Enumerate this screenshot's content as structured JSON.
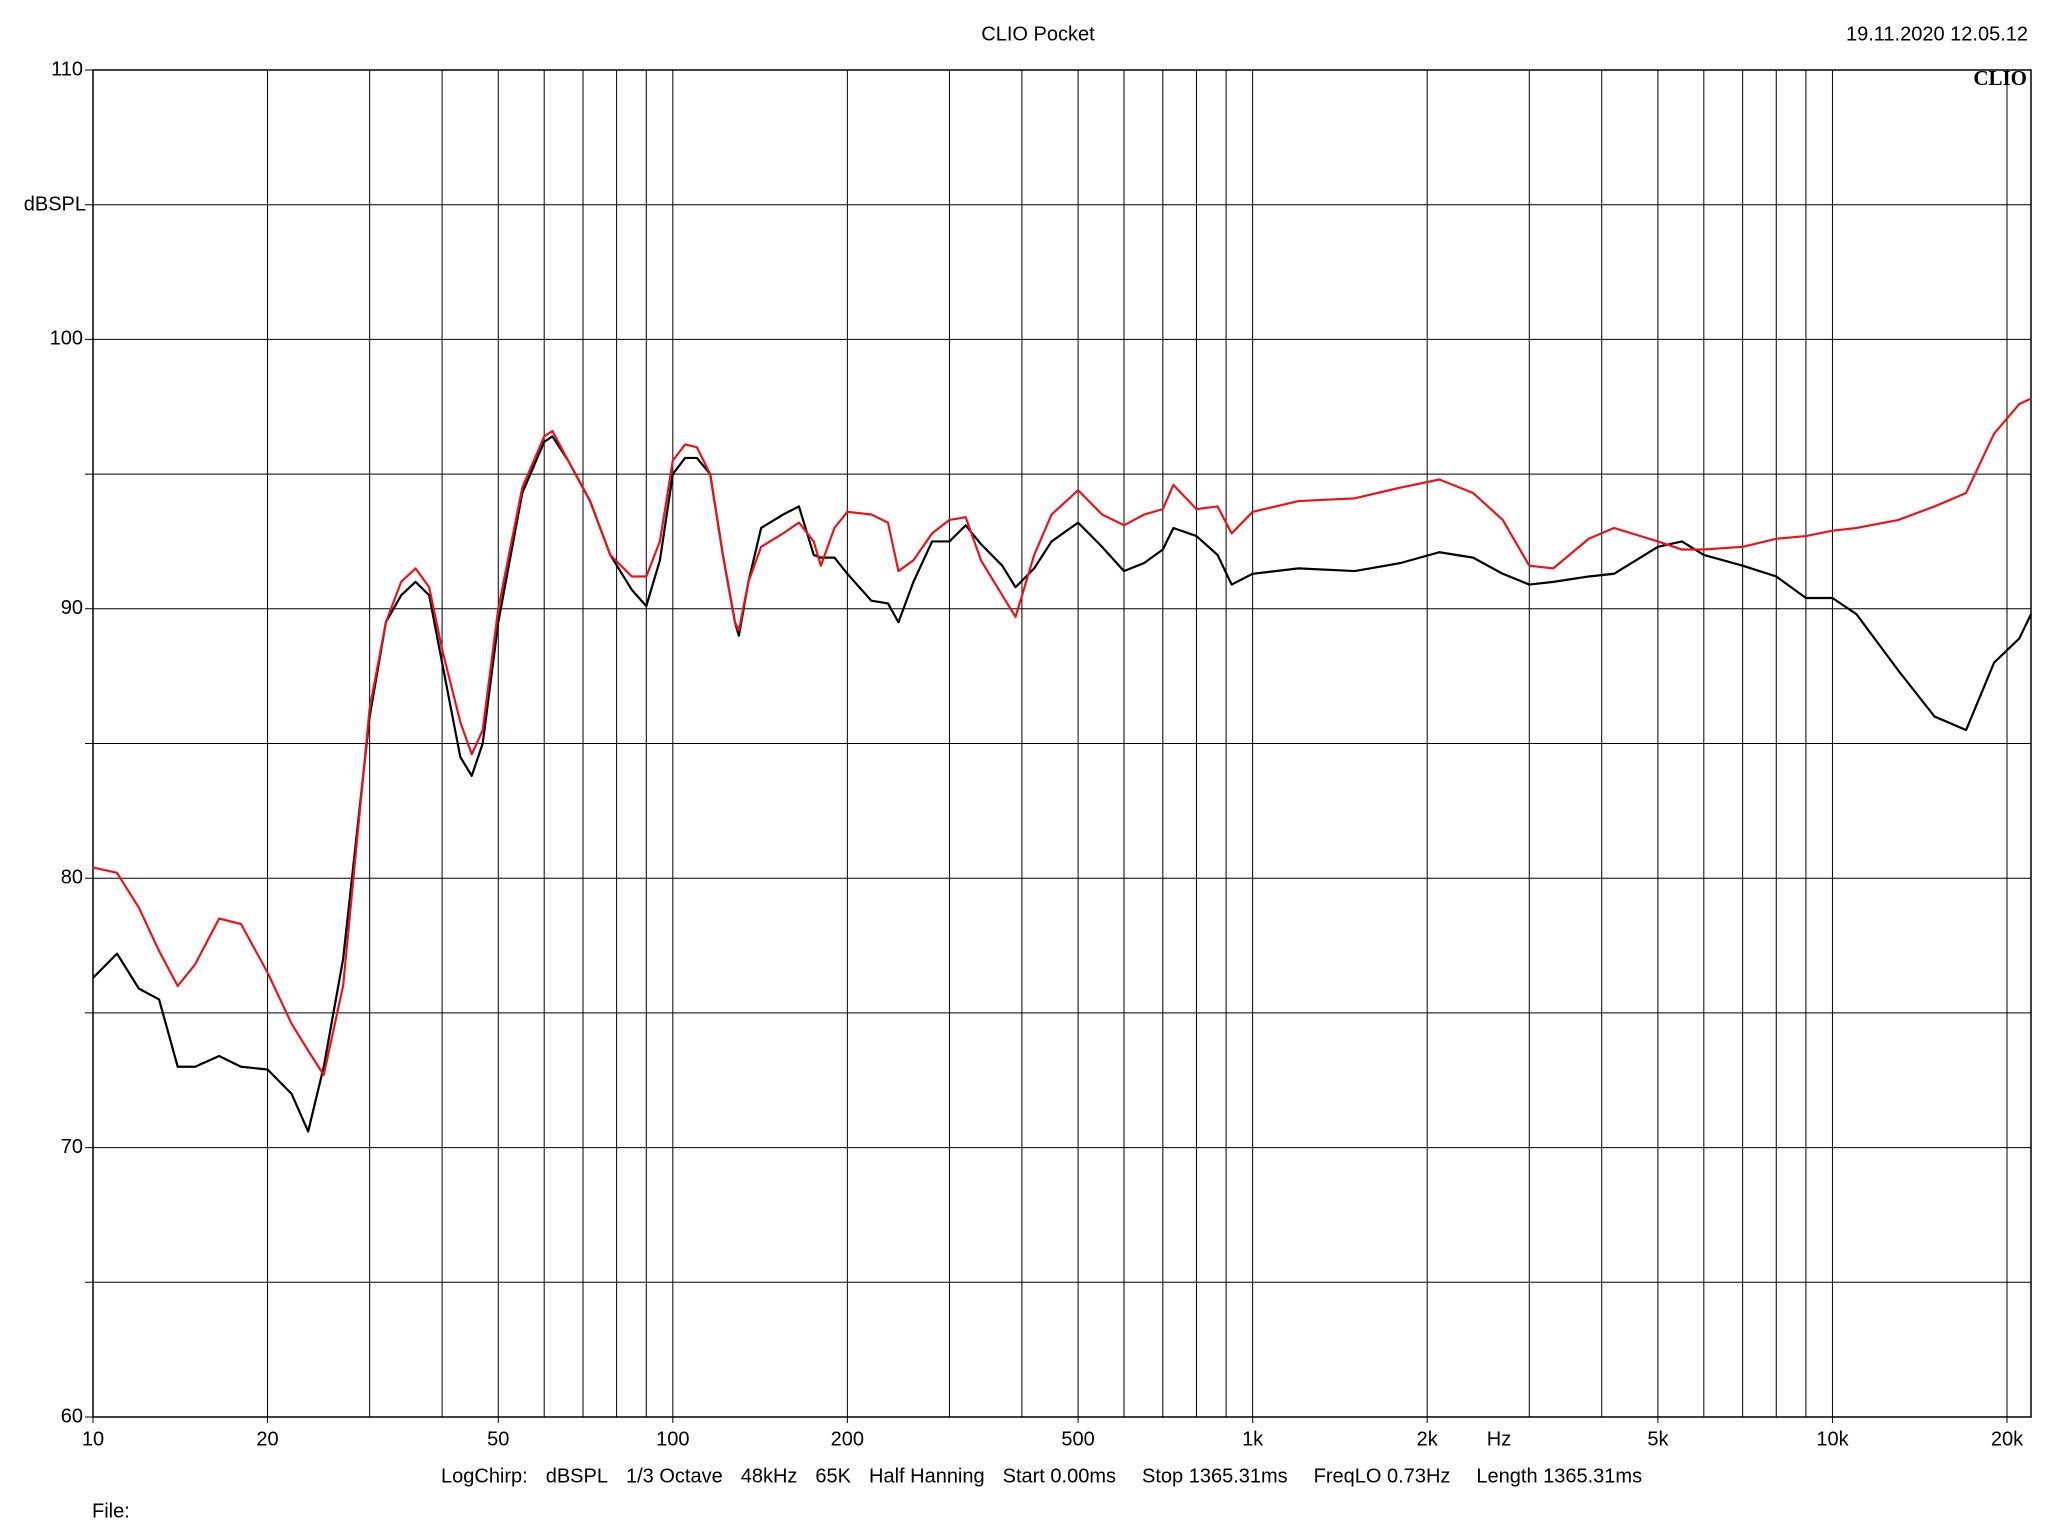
{
  "chart_data": {
    "type": "line",
    "title": "CLIO Pocket",
    "timestamp": "19.11.2020 12.05.12",
    "logo": "CLIO",
    "ylabel": "dBSPL",
    "xlabel": "Hz",
    "info": [
      "LogChirp:",
      "dBSPL",
      "1/3 Octave",
      "48kHz",
      "65K",
      "Half Hanning",
      "Start 0.00ms",
      "Stop 1365.31ms",
      "FreqLO 0.73Hz",
      "Length 1365.31ms"
    ],
    "file_label": "File:",
    "xscale": "log",
    "grid": true,
    "xlim": [
      10,
      22000
    ],
    "ylim": [
      60,
      110
    ],
    "xticks": [
      10,
      20,
      50,
      100,
      200,
      500,
      {
        "value": 1000,
        "label": "1k"
      },
      {
        "value": 2000,
        "label": "2k"
      },
      {
        "value": 5000,
        "label": "5k"
      },
      {
        "value": 10000,
        "label": "10k"
      },
      {
        "value": 20000,
        "label": "20k"
      }
    ],
    "xgrid": [
      20,
      30,
      40,
      50,
      60,
      70,
      80,
      90,
      100,
      200,
      300,
      400,
      500,
      600,
      700,
      800,
      900,
      1000,
      2000,
      3000,
      4000,
      5000,
      6000,
      7000,
      8000,
      9000,
      10000,
      20000
    ],
    "yticks": [
      60,
      70,
      80,
      90,
      100,
      110
    ],
    "yminor": [
      65,
      75,
      85,
      95,
      105
    ],
    "x": [
      10,
      11,
      12,
      13,
      14,
      15,
      16.5,
      18,
      20,
      22,
      23.5,
      25,
      27,
      30,
      32,
      34,
      36,
      38,
      40,
      43,
      45,
      47,
      50,
      55,
      60,
      62,
      66,
      72,
      78,
      85,
      90,
      95,
      100,
      105,
      110,
      116,
      122,
      128,
      130,
      135,
      142,
      155,
      165,
      175,
      180,
      190,
      200,
      220,
      235,
      245,
      260,
      280,
      300,
      320,
      340,
      370,
      390,
      420,
      450,
      500,
      550,
      600,
      650,
      700,
      730,
      800,
      870,
      920,
      1000,
      1200,
      1500,
      1800,
      2100,
      2400,
      2700,
      3000,
      3300,
      3800,
      4200,
      5000,
      5500,
      6000,
      7000,
      8000,
      9000,
      10000,
      11000,
      13000,
      15000,
      17000,
      19000,
      21000,
      22000
    ],
    "series": [
      {
        "color": "#000000",
        "values": [
          76.3,
          77.2,
          75.9,
          75.5,
          73,
          73.0,
          73.4,
          73.0,
          72.9,
          72,
          70.6,
          73,
          77,
          86,
          89.5,
          90.5,
          91,
          90.5,
          88,
          84.5,
          83.8,
          85,
          89.5,
          94.3,
          96.2,
          96.4,
          95.5,
          94,
          92,
          90.7,
          90.1,
          91.8,
          95,
          95.6,
          95.6,
          95,
          92,
          89.5,
          89,
          91,
          93,
          93.5,
          93.8,
          92,
          91.9,
          91.9,
          91.3,
          90.3,
          90.2,
          89.5,
          91,
          92.5,
          92.5,
          93.1,
          92.4,
          91.6,
          90.8,
          91.5,
          92.5,
          93.2,
          92.3,
          91.4,
          91.7,
          92.2,
          93,
          92.7,
          92,
          90.9,
          91.3,
          91.5,
          91.4,
          91.7,
          92.1,
          91.9,
          91.3,
          90.9,
          91,
          91.2,
          91.3,
          92.3,
          92.5,
          92,
          91.6,
          91.2,
          90.4,
          90.4,
          89.8,
          87.7,
          86,
          85.5,
          88,
          88.9,
          89.8
        ]
      },
      {
        "color": "#e8141c",
        "values": [
          80.4,
          80.2,
          78.9,
          77.3,
          76.0,
          76.8,
          78.5,
          78.3,
          76.5,
          74.6,
          73.6,
          72.7,
          76,
          86.3,
          89.5,
          91,
          91.5,
          90.8,
          88.5,
          85.8,
          84.6,
          85.5,
          90,
          94.5,
          96.4,
          96.6,
          95.5,
          94,
          92,
          91.2,
          91.2,
          92.5,
          95.5,
          96.1,
          96,
          95,
          92,
          89.5,
          89.2,
          91,
          92.3,
          92.8,
          93.2,
          92.5,
          91.6,
          93,
          93.6,
          93.5,
          93.2,
          91.4,
          91.8,
          92.8,
          93.3,
          93.4,
          91.8,
          90.5,
          89.7,
          92,
          93.5,
          94.4,
          93.5,
          93.1,
          93.5,
          93.7,
          94.6,
          93.7,
          93.8,
          92.8,
          93.6,
          94,
          94.1,
          94.5,
          94.8,
          94.3,
          93.3,
          91.6,
          91.5,
          92.6,
          93,
          92.5,
          92.2,
          92.2,
          92.3,
          92.6,
          92.7,
          92.9,
          93,
          93.3,
          93.8,
          94.3,
          96.5,
          97.6,
          97.8
        ]
      }
    ]
  }
}
